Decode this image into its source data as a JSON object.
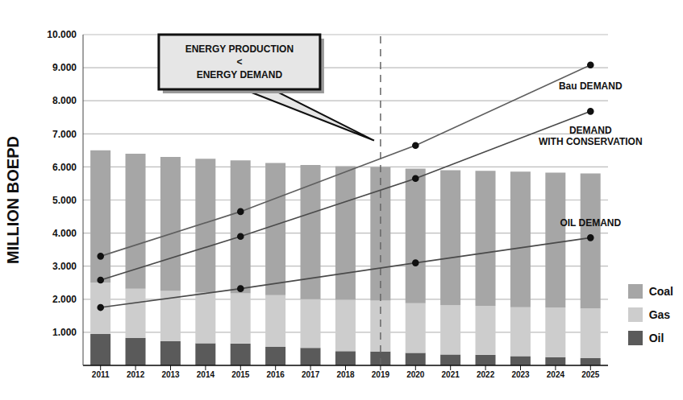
{
  "chart_data": {
    "type": "bar",
    "stacked": true,
    "y_label": "MILLION BOEPD",
    "categories": [
      "2011",
      "2012",
      "2013",
      "2014",
      "2015",
      "2016",
      "2017",
      "2018",
      "2019",
      "2020",
      "2021",
      "2022",
      "2023",
      "2024",
      "2025"
    ],
    "series": [
      {
        "name": "Oil",
        "type": "bar",
        "color": "#5a5a5a",
        "values": [
          950,
          830,
          730,
          670,
          660,
          560,
          530,
          430,
          420,
          380,
          330,
          320,
          280,
          250,
          220
        ]
      },
      {
        "name": "Gas",
        "type": "bar",
        "color": "#cdcdcd",
        "values": [
          1550,
          1490,
          1520,
          1530,
          1520,
          1560,
          1470,
          1550,
          1540,
          1500,
          1490,
          1480,
          1480,
          1500,
          1500
        ]
      },
      {
        "name": "Coal",
        "type": "bar",
        "color": "#a6a6a6",
        "values": [
          4000,
          4080,
          4050,
          4050,
          4020,
          4000,
          4060,
          4040,
          4030,
          4070,
          4080,
          4080,
          4100,
          4080,
          4080
        ]
      },
      {
        "name": "Bau DEMAND",
        "type": "line",
        "color": "#5f5f5f",
        "marker": "circle",
        "values": [
          3300,
          null,
          null,
          null,
          4650,
          null,
          null,
          null,
          null,
          6650,
          null,
          null,
          null,
          null,
          9080
        ]
      },
      {
        "name": "DEMAND WITH CONSERVATION",
        "type": "line",
        "color": "#4a4a4a",
        "marker": "circle",
        "values": [
          2580,
          null,
          null,
          null,
          3900,
          null,
          null,
          null,
          null,
          5650,
          null,
          null,
          null,
          null,
          7680
        ]
      },
      {
        "name": "OIL DEMAND",
        "type": "line",
        "color": "#4a4a4a",
        "marker": "circle",
        "values": [
          1750,
          null,
          null,
          null,
          2320,
          null,
          null,
          null,
          null,
          3100,
          null,
          null,
          null,
          null,
          3860
        ]
      }
    ],
    "ylim": [
      0,
      10000
    ],
    "yticks": [
      {
        "value": 1000,
        "label": "1.000"
      },
      {
        "value": 2000,
        "label": "2.000"
      },
      {
        "value": 3000,
        "label": "3.000"
      },
      {
        "value": 4000,
        "label": "4.000"
      },
      {
        "value": 5000,
        "label": "5.000"
      },
      {
        "value": 6000,
        "label": "6.000"
      },
      {
        "value": 7000,
        "label": "7.000"
      },
      {
        "value": 8000,
        "label": "8.000"
      },
      {
        "value": 9000,
        "label": "9.000"
      },
      {
        "value": 10000,
        "label": "10.000"
      }
    ],
    "grid": true,
    "legend": "lower right",
    "annotations": [
      {
        "text": "ENERGY PRODUCTION\n<\nENERGY DEMAND",
        "x": "2019"
      }
    ]
  }
}
